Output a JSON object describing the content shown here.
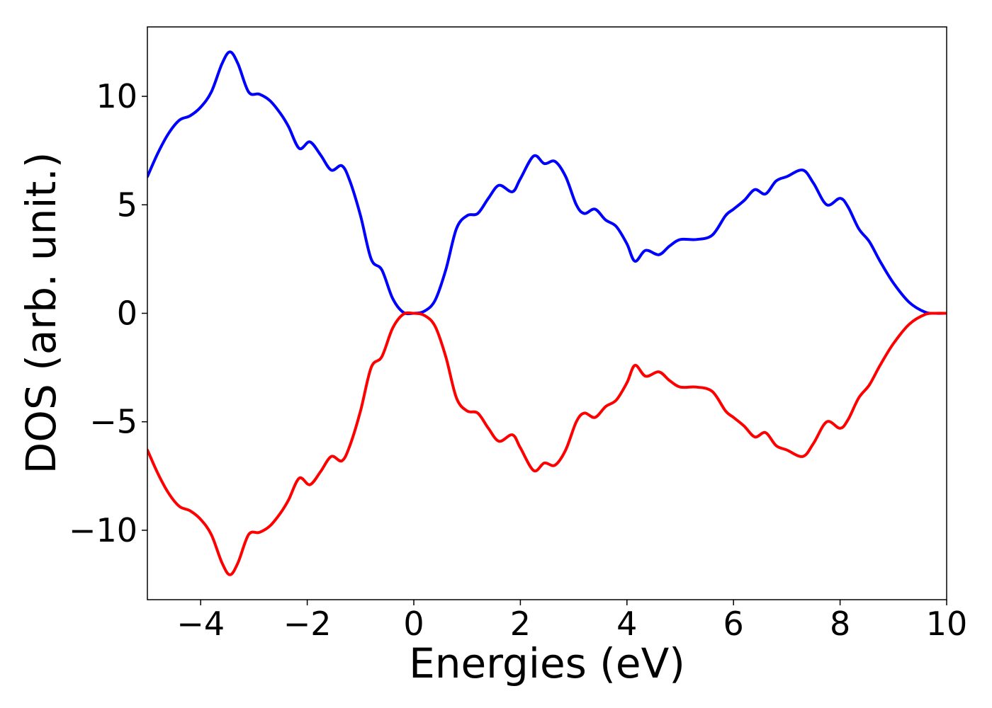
{
  "chart_data": {
    "type": "line",
    "xlabel": "Energies (eV)",
    "ylabel": "DOS (arb. unit.)",
    "xlim": [
      -5,
      10
    ],
    "ylim": [
      -13.2,
      13.2
    ],
    "xticks": [
      {
        "value": -4,
        "label": "−4"
      },
      {
        "value": -2,
        "label": "−2"
      },
      {
        "value": 0,
        "label": "0"
      },
      {
        "value": 2,
        "label": "2"
      },
      {
        "value": 4,
        "label": "4"
      },
      {
        "value": 6,
        "label": "6"
      },
      {
        "value": 8,
        "label": "8"
      },
      {
        "value": 10,
        "label": "10"
      }
    ],
    "yticks": [
      {
        "value": 10,
        "label": "10"
      },
      {
        "value": 5,
        "label": "5"
      },
      {
        "value": 0,
        "label": "0"
      },
      {
        "value": -5,
        "label": "−5"
      },
      {
        "value": -10,
        "label": "−10"
      }
    ],
    "grid": false,
    "legend": "none",
    "series": [
      {
        "color": "#0000ff",
        "points": [
          [
            -5.0,
            6.3
          ],
          [
            -4.8,
            7.4
          ],
          [
            -4.6,
            8.3
          ],
          [
            -4.4,
            8.9
          ],
          [
            -4.2,
            9.1
          ],
          [
            -4.0,
            9.5
          ],
          [
            -3.8,
            10.2
          ],
          [
            -3.6,
            11.5
          ],
          [
            -3.45,
            12.05
          ],
          [
            -3.3,
            11.5
          ],
          [
            -3.1,
            10.2
          ],
          [
            -2.9,
            10.1
          ],
          [
            -2.7,
            9.8
          ],
          [
            -2.5,
            9.2
          ],
          [
            -2.35,
            8.6
          ],
          [
            -2.15,
            7.6
          ],
          [
            -1.95,
            7.9
          ],
          [
            -1.75,
            7.3
          ],
          [
            -1.55,
            6.6
          ],
          [
            -1.35,
            6.8
          ],
          [
            -1.2,
            6.1
          ],
          [
            -1.0,
            4.5
          ],
          [
            -0.8,
            2.5
          ],
          [
            -0.6,
            2.0
          ],
          [
            -0.4,
            0.7
          ],
          [
            -0.2,
            0.05
          ],
          [
            0.0,
            0.0
          ],
          [
            0.2,
            0.1
          ],
          [
            0.4,
            0.6
          ],
          [
            0.6,
            2.0
          ],
          [
            0.8,
            3.9
          ],
          [
            1.0,
            4.5
          ],
          [
            1.2,
            4.6
          ],
          [
            1.4,
            5.3
          ],
          [
            1.6,
            5.9
          ],
          [
            1.85,
            5.6
          ],
          [
            2.0,
            6.2
          ],
          [
            2.25,
            7.25
          ],
          [
            2.45,
            6.9
          ],
          [
            2.65,
            7.0
          ],
          [
            2.85,
            6.3
          ],
          [
            3.05,
            5.0
          ],
          [
            3.2,
            4.6
          ],
          [
            3.4,
            4.8
          ],
          [
            3.6,
            4.3
          ],
          [
            3.8,
            4.0
          ],
          [
            4.0,
            3.2
          ],
          [
            4.15,
            2.4
          ],
          [
            4.35,
            2.9
          ],
          [
            4.6,
            2.7
          ],
          [
            4.8,
            3.1
          ],
          [
            5.0,
            3.4
          ],
          [
            5.3,
            3.4
          ],
          [
            5.6,
            3.6
          ],
          [
            5.85,
            4.5
          ],
          [
            6.0,
            4.8
          ],
          [
            6.2,
            5.2
          ],
          [
            6.4,
            5.7
          ],
          [
            6.6,
            5.5
          ],
          [
            6.8,
            6.1
          ],
          [
            7.0,
            6.3
          ],
          [
            7.3,
            6.6
          ],
          [
            7.5,
            6.0
          ],
          [
            7.75,
            5.0
          ],
          [
            8.0,
            5.3
          ],
          [
            8.15,
            4.9
          ],
          [
            8.35,
            3.9
          ],
          [
            8.55,
            3.3
          ],
          [
            8.75,
            2.4
          ],
          [
            9.0,
            1.4
          ],
          [
            9.3,
            0.5
          ],
          [
            9.6,
            0.05
          ],
          [
            9.8,
            0.0
          ],
          [
            10.0,
            0.0
          ]
        ]
      },
      {
        "color": "#ff0000",
        "points": [
          [
            -5.0,
            -6.3
          ],
          [
            -4.8,
            -7.4
          ],
          [
            -4.6,
            -8.3
          ],
          [
            -4.4,
            -8.9
          ],
          [
            -4.2,
            -9.1
          ],
          [
            -4.0,
            -9.5
          ],
          [
            -3.8,
            -10.2
          ],
          [
            -3.6,
            -11.5
          ],
          [
            -3.45,
            -12.05
          ],
          [
            -3.3,
            -11.5
          ],
          [
            -3.1,
            -10.2
          ],
          [
            -2.9,
            -10.1
          ],
          [
            -2.7,
            -9.8
          ],
          [
            -2.5,
            -9.2
          ],
          [
            -2.35,
            -8.6
          ],
          [
            -2.15,
            -7.6
          ],
          [
            -1.95,
            -7.9
          ],
          [
            -1.75,
            -7.3
          ],
          [
            -1.55,
            -6.6
          ],
          [
            -1.35,
            -6.8
          ],
          [
            -1.2,
            -6.1
          ],
          [
            -1.0,
            -4.5
          ],
          [
            -0.8,
            -2.5
          ],
          [
            -0.6,
            -2.0
          ],
          [
            -0.4,
            -0.7
          ],
          [
            -0.2,
            -0.05
          ],
          [
            0.0,
            0.0
          ],
          [
            0.2,
            -0.1
          ],
          [
            0.4,
            -0.6
          ],
          [
            0.6,
            -2.0
          ],
          [
            0.8,
            -3.9
          ],
          [
            1.0,
            -4.5
          ],
          [
            1.2,
            -4.6
          ],
          [
            1.4,
            -5.3
          ],
          [
            1.6,
            -5.9
          ],
          [
            1.85,
            -5.6
          ],
          [
            2.0,
            -6.2
          ],
          [
            2.25,
            -7.25
          ],
          [
            2.45,
            -6.9
          ],
          [
            2.65,
            -7.0
          ],
          [
            2.85,
            -6.3
          ],
          [
            3.05,
            -5.0
          ],
          [
            3.2,
            -4.6
          ],
          [
            3.4,
            -4.8
          ],
          [
            3.6,
            -4.3
          ],
          [
            3.8,
            -4.0
          ],
          [
            4.0,
            -3.2
          ],
          [
            4.15,
            -2.4
          ],
          [
            4.35,
            -2.9
          ],
          [
            4.6,
            -2.7
          ],
          [
            4.8,
            -3.1
          ],
          [
            5.0,
            -3.4
          ],
          [
            5.3,
            -3.4
          ],
          [
            5.6,
            -3.6
          ],
          [
            5.85,
            -4.5
          ],
          [
            6.0,
            -4.8
          ],
          [
            6.2,
            -5.2
          ],
          [
            6.4,
            -5.7
          ],
          [
            6.6,
            -5.5
          ],
          [
            6.8,
            -6.1
          ],
          [
            7.0,
            -6.3
          ],
          [
            7.3,
            -6.6
          ],
          [
            7.5,
            -6.0
          ],
          [
            7.75,
            -5.0
          ],
          [
            8.0,
            -5.3
          ],
          [
            8.15,
            -4.9
          ],
          [
            8.35,
            -3.9
          ],
          [
            8.55,
            -3.3
          ],
          [
            8.75,
            -2.4
          ],
          [
            9.0,
            -1.4
          ],
          [
            9.3,
            -0.5
          ],
          [
            9.6,
            -0.05
          ],
          [
            9.8,
            0.0
          ],
          [
            10.0,
            0.0
          ]
        ]
      }
    ]
  }
}
